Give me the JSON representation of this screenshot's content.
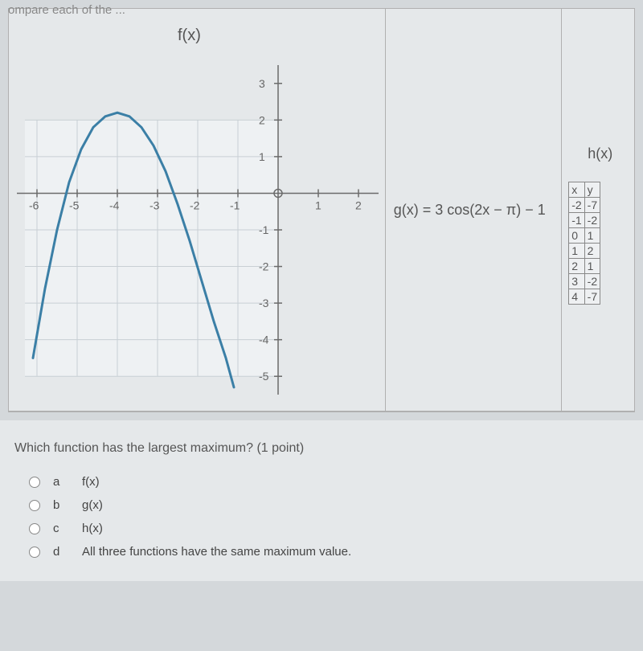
{
  "top_crop_text": "ompare each of the ...",
  "panel_f": {
    "title": "f(x)",
    "chart": {
      "type": "line",
      "xlim": [
        -6.5,
        2.5
      ],
      "ylim": [
        -5.5,
        3.5
      ],
      "xticks": [
        -6,
        -5,
        -4,
        -3,
        -2,
        -1,
        1,
        2
      ],
      "yticks": [
        -5,
        -4,
        -3,
        -2,
        -1,
        1,
        2,
        3
      ],
      "grid_xmin": -6.3,
      "grid_xmax": 0,
      "grid_ymin": -5,
      "grid_ymax": 2,
      "grid_color": "#c8cfd4",
      "axis_color": "#6b6b6b",
      "background": "#eef1f3",
      "curve_color": "#3b7fa6",
      "curve_width": 3,
      "curve_points": [
        [
          -6.1,
          -4.5
        ],
        [
          -5.8,
          -2.6
        ],
        [
          -5.5,
          -1.0
        ],
        [
          -5.2,
          0.3
        ],
        [
          -4.9,
          1.2
        ],
        [
          -4.6,
          1.8
        ],
        [
          -4.3,
          2.1
        ],
        [
          -4.0,
          2.2
        ],
        [
          -3.7,
          2.1
        ],
        [
          -3.4,
          1.8
        ],
        [
          -3.1,
          1.3
        ],
        [
          -2.8,
          0.6
        ],
        [
          -2.5,
          -0.3
        ],
        [
          -2.2,
          -1.3
        ],
        [
          -1.9,
          -2.4
        ],
        [
          -1.6,
          -3.5
        ],
        [
          -1.3,
          -4.5
        ],
        [
          -1.1,
          -5.3
        ]
      ]
    }
  },
  "panel_g": {
    "formula": "g(x) = 3 cos(2x − π) − 1"
  },
  "panel_h": {
    "title": "h(x)",
    "columns": [
      "x",
      "y"
    ],
    "rows": [
      [
        "-2",
        "-7"
      ],
      [
        "-1",
        "-2"
      ],
      [
        "0",
        "1"
      ],
      [
        "1",
        "2"
      ],
      [
        "2",
        "1"
      ],
      [
        "3",
        "-2"
      ],
      [
        "4",
        "-7"
      ]
    ]
  },
  "question": "Which function has the largest maximum? (1 point)",
  "choices": [
    {
      "letter": "a",
      "text": "f(x)"
    },
    {
      "letter": "b",
      "text": "g(x)"
    },
    {
      "letter": "c",
      "text": "h(x)"
    },
    {
      "letter": "d",
      "text": "All three functions have the same maximum value."
    }
  ]
}
